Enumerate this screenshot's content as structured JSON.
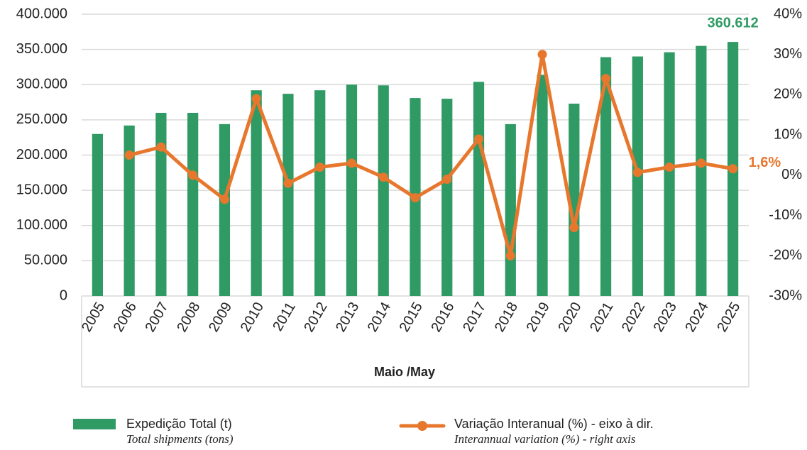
{
  "chart_data": {
    "type": "bar_line",
    "xlabel": "Maio /May",
    "categories": [
      "2005",
      "2006",
      "2007",
      "2008",
      "2009",
      "2010",
      "2011",
      "2012",
      "2013",
      "2014",
      "2015",
      "2016",
      "2017",
      "2018",
      "2019",
      "2020",
      "2021",
      "2022",
      "2023",
      "2024",
      "2025"
    ],
    "series": [
      {
        "name": "Expedição Total (t)",
        "subtitle": "Total shipments (tons)",
        "type": "bar",
        "color": "#2f9a64",
        "values": [
          230000,
          242000,
          260000,
          260000,
          244000,
          292000,
          287000,
          292000,
          300000,
          299000,
          281000,
          280000,
          304000,
          244000,
          314000,
          273000,
          339000,
          340000,
          346000,
          355000,
          360612
        ],
        "value_labels": [
          null,
          null,
          null,
          null,
          null,
          null,
          null,
          null,
          null,
          null,
          null,
          null,
          null,
          null,
          null,
          null,
          null,
          null,
          null,
          null,
          "360.612"
        ]
      },
      {
        "name": "Variação Interanual (%) - eixo à dir.",
        "subtitle": "Interannual variation (%) - right axis",
        "type": "line",
        "axis": "y2",
        "color": "#e8772e",
        "values": [
          null,
          5,
          7,
          0,
          -6,
          19,
          -2,
          2,
          3,
          -0.5,
          -5.6,
          -1,
          9,
          -20,
          30,
          -13,
          24,
          0.7,
          2,
          3,
          1.6
        ],
        "value_labels": [
          null,
          null,
          null,
          null,
          null,
          null,
          null,
          null,
          null,
          null,
          null,
          null,
          null,
          null,
          null,
          null,
          null,
          null,
          null,
          null,
          "1,6%"
        ]
      }
    ],
    "ylim": [
      0,
      400000
    ],
    "yticks": [
      0,
      {
        "value": 50000,
        "label": "50.000"
      },
      {
        "value": 100000,
        "label": "100.000"
      },
      {
        "value": 150000,
        "label": "150.000"
      },
      {
        "value": 200000,
        "label": "200.000"
      },
      {
        "value": 250000,
        "label": "250.000"
      },
      {
        "value": 300000,
        "label": "300.000"
      },
      {
        "value": 350000,
        "label": "350.000"
      },
      {
        "value": 400000,
        "label": "400.000"
      }
    ],
    "y2lim": [
      -30,
      40
    ],
    "y2ticks": [
      {
        "value": -30,
        "label": "-30%"
      },
      {
        "value": -20,
        "label": "-20%"
      },
      {
        "value": -10,
        "label": "-10%"
      },
      {
        "value": 0,
        "label": "0%"
      },
      {
        "value": 10,
        "label": "10%"
      },
      {
        "value": 20,
        "label": "20%"
      },
      {
        "value": 30,
        "label": "30%"
      },
      {
        "value": 40,
        "label": "40%"
      }
    ],
    "grid": true
  }
}
